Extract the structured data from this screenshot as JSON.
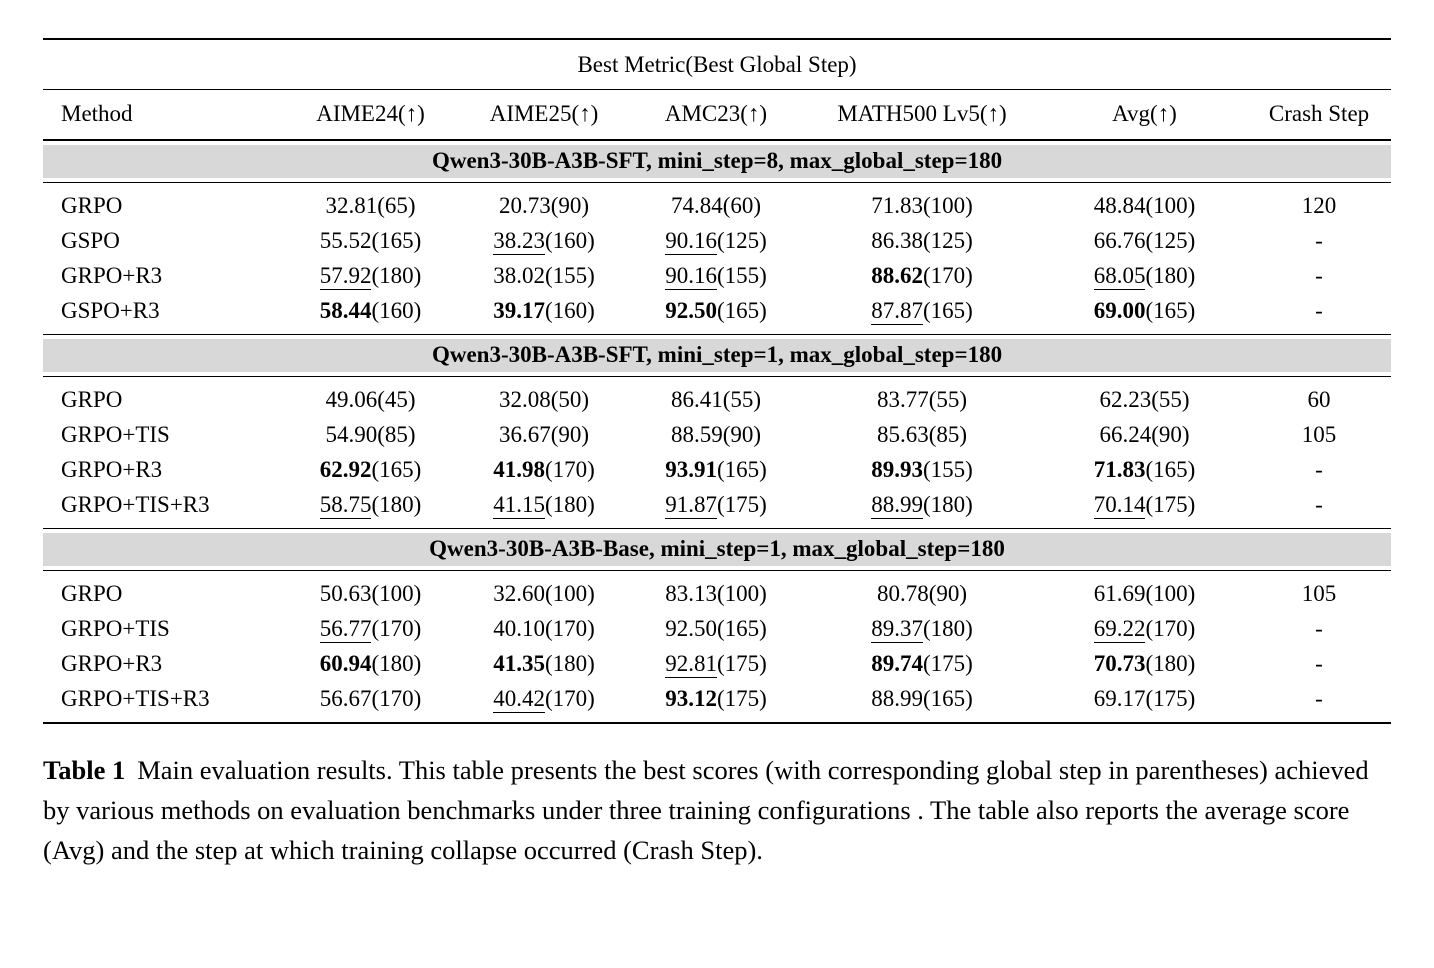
{
  "table": {
    "title": "Best Metric(Best Global Step)",
    "columns": [
      "Method",
      "AIME24(↑)",
      "AIME25(↑)",
      "AMC23(↑)",
      "MATH500 Lv5(↑)",
      "Avg(↑)",
      "Crash Step"
    ],
    "sections": [
      {
        "header": "Qwen3-30B-A3B-SFT, mini_step=8, max_global_step=180",
        "rows": [
          {
            "method": "GRPO",
            "cells": [
              {
                "v": "32.81",
                "s": "(65)",
                "f": "n"
              },
              {
                "v": "20.73",
                "s": "(90)",
                "f": "n"
              },
              {
                "v": "74.84",
                "s": "(60)",
                "f": "n"
              },
              {
                "v": "71.83",
                "s": "(100)",
                "f": "n"
              },
              {
                "v": "48.84",
                "s": "(100)",
                "f": "n"
              }
            ],
            "crash": "120"
          },
          {
            "method": "GSPO",
            "cells": [
              {
                "v": "55.52",
                "s": "(165)",
                "f": "n"
              },
              {
                "v": "38.23",
                "s": "(160)",
                "f": "u"
              },
              {
                "v": "90.16",
                "s": "(125)",
                "f": "u"
              },
              {
                "v": "86.38",
                "s": "(125)",
                "f": "n"
              },
              {
                "v": "66.76",
                "s": "(125)",
                "f": "n"
              }
            ],
            "crash": "-"
          },
          {
            "method": "GRPO+R3",
            "cells": [
              {
                "v": "57.92",
                "s": "(180)",
                "f": "u"
              },
              {
                "v": "38.02",
                "s": "(155)",
                "f": "n"
              },
              {
                "v": "90.16",
                "s": "(155)",
                "f": "u"
              },
              {
                "v": "88.62",
                "s": "(170)",
                "f": "b"
              },
              {
                "v": "68.05",
                "s": "(180)",
                "f": "u"
              }
            ],
            "crash": "-"
          },
          {
            "method": "GSPO+R3",
            "cells": [
              {
                "v": "58.44",
                "s": "(160)",
                "f": "b"
              },
              {
                "v": "39.17",
                "s": "(160)",
                "f": "b"
              },
              {
                "v": "92.50",
                "s": "(165)",
                "f": "b"
              },
              {
                "v": "87.87",
                "s": "(165)",
                "f": "u"
              },
              {
                "v": "69.00",
                "s": "(165)",
                "f": "b"
              }
            ],
            "crash": "-"
          }
        ]
      },
      {
        "header": "Qwen3-30B-A3B-SFT, mini_step=1, max_global_step=180",
        "rows": [
          {
            "method": "GRPO",
            "cells": [
              {
                "v": "49.06",
                "s": "(45)",
                "f": "n"
              },
              {
                "v": "32.08",
                "s": "(50)",
                "f": "n"
              },
              {
                "v": "86.41",
                "s": "(55)",
                "f": "n"
              },
              {
                "v": "83.77",
                "s": "(55)",
                "f": "n"
              },
              {
                "v": "62.23",
                "s": "(55)",
                "f": "n"
              }
            ],
            "crash": "60"
          },
          {
            "method": "GRPO+TIS",
            "cells": [
              {
                "v": "54.90",
                "s": "(85)",
                "f": "n"
              },
              {
                "v": "36.67",
                "s": "(90)",
                "f": "n"
              },
              {
                "v": "88.59",
                "s": "(90)",
                "f": "n"
              },
              {
                "v": "85.63",
                "s": "(85)",
                "f": "n"
              },
              {
                "v": "66.24",
                "s": "(90)",
                "f": "n"
              }
            ],
            "crash": "105"
          },
          {
            "method": "GRPO+R3",
            "cells": [
              {
                "v": "62.92",
                "s": "(165)",
                "f": "b"
              },
              {
                "v": "41.98",
                "s": "(170)",
                "f": "b"
              },
              {
                "v": "93.91",
                "s": "(165)",
                "f": "b"
              },
              {
                "v": "89.93",
                "s": "(155)",
                "f": "b"
              },
              {
                "v": "71.83",
                "s": "(165)",
                "f": "b"
              }
            ],
            "crash": "-"
          },
          {
            "method": "GRPO+TIS+R3",
            "cells": [
              {
                "v": "58.75",
                "s": "(180)",
                "f": "u"
              },
              {
                "v": "41.15",
                "s": "(180)",
                "f": "u"
              },
              {
                "v": "91.87",
                "s": "(175)",
                "f": "u"
              },
              {
                "v": "88.99",
                "s": "(180)",
                "f": "u"
              },
              {
                "v": "70.14",
                "s": "(175)",
                "f": "u"
              }
            ],
            "crash": "-"
          }
        ]
      },
      {
        "header": "Qwen3-30B-A3B-Base, mini_step=1, max_global_step=180",
        "rows": [
          {
            "method": "GRPO",
            "cells": [
              {
                "v": "50.63",
                "s": "(100)",
                "f": "n"
              },
              {
                "v": "32.60",
                "s": "(100)",
                "f": "n"
              },
              {
                "v": "83.13",
                "s": "(100)",
                "f": "n"
              },
              {
                "v": "80.78",
                "s": "(90)",
                "f": "n"
              },
              {
                "v": "61.69",
                "s": "(100)",
                "f": "n"
              }
            ],
            "crash": "105"
          },
          {
            "method": "GRPO+TIS",
            "cells": [
              {
                "v": "56.77",
                "s": "(170)",
                "f": "u"
              },
              {
                "v": "40.10",
                "s": "(170)",
                "f": "n"
              },
              {
                "v": "92.50",
                "s": "(165)",
                "f": "n"
              },
              {
                "v": "89.37",
                "s": "(180)",
                "f": "u"
              },
              {
                "v": "69.22",
                "s": "(170)",
                "f": "u"
              }
            ],
            "crash": "-"
          },
          {
            "method": "GRPO+R3",
            "cells": [
              {
                "v": "60.94",
                "s": "(180)",
                "f": "b"
              },
              {
                "v": "41.35",
                "s": "(180)",
                "f": "b"
              },
              {
                "v": "92.81",
                "s": "(175)",
                "f": "u"
              },
              {
                "v": "89.74",
                "s": "(175)",
                "f": "b"
              },
              {
                "v": "70.73",
                "s": "(180)",
                "f": "b"
              }
            ],
            "crash": "-"
          },
          {
            "method": "GRPO+TIS+R3",
            "cells": [
              {
                "v": "56.67",
                "s": "(170)",
                "f": "n"
              },
              {
                "v": "40.42",
                "s": "(170)",
                "f": "u"
              },
              {
                "v": "93.12",
                "s": "(175)",
                "f": "b"
              },
              {
                "v": "88.99",
                "s": "(165)",
                "f": "n"
              },
              {
                "v": "69.17",
                "s": "(175)",
                "f": "n"
              }
            ],
            "crash": "-"
          }
        ]
      }
    ]
  },
  "caption": {
    "label": "Table 1",
    "text": "Main evaluation results. This table presents the best scores (with corresponding global step in parentheses) achieved by various methods on evaluation benchmarks under three training configurations . The table also reports the average score (Avg) and the step at which training collapse occurred (Crash Step)."
  }
}
